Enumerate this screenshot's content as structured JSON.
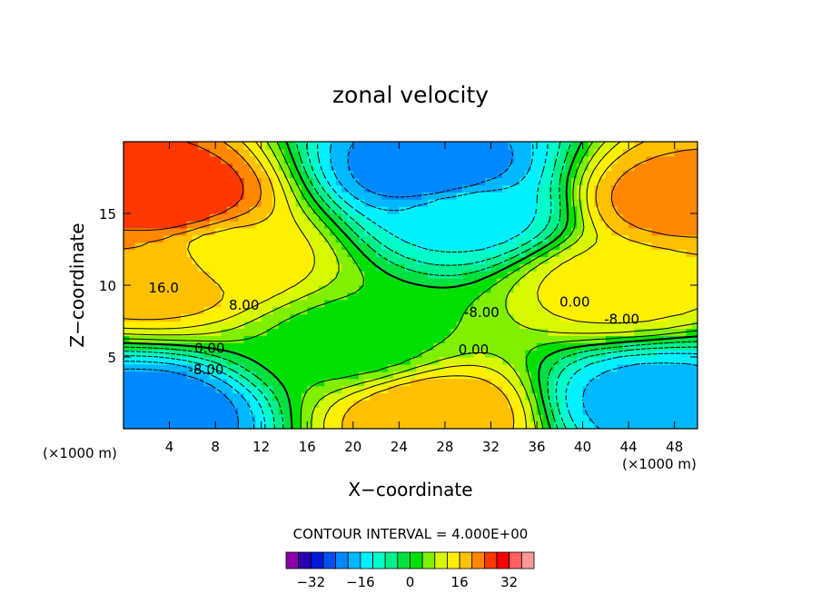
{
  "chart_data": {
    "type": "heatmap",
    "title": "zonal velocity",
    "xlabel": "X−coordinate",
    "ylabel": "Z−coordinate",
    "x_unit_left": "(×1000 m)",
    "x_unit_right": "(×1000 m)",
    "xlim": [
      0,
      50
    ],
    "ylim": [
      0,
      20
    ],
    "x_ticks": [
      4,
      8,
      12,
      16,
      20,
      24,
      28,
      32,
      36,
      40,
      44,
      48
    ],
    "y_ticks": [
      5,
      10,
      15
    ],
    "contour_interval_text": "CONTOUR INTERVAL = 4.000E+00",
    "contour_interval": 4,
    "contour_labels": [
      {
        "text": "16.0",
        "x": 3.5,
        "y": 9.5
      },
      {
        "text": "8.00",
        "x": 10.5,
        "y": 8.3
      },
      {
        "text": "0.00",
        "x": 7.5,
        "y": 5.3
      },
      {
        "text": "-8.00",
        "x": 7.2,
        "y": 3.8
      },
      {
        "text": "-8.00",
        "x": 31.2,
        "y": 7.8
      },
      {
        "text": "0.00",
        "x": 30.5,
        "y": 5.2
      },
      {
        "text": "0.00",
        "x": 39.3,
        "y": 8.5
      },
      {
        "text": "-8.00",
        "x": 43.4,
        "y": 7.3
      }
    ],
    "field": {
      "description": "zonal velocity over x (×1000 m) and z",
      "regions": [
        {
          "x": 3.5,
          "y": 16,
          "value": 28
        },
        {
          "x": 3,
          "y": 11,
          "value": 20
        },
        {
          "x": 9,
          "y": 12,
          "value": 14
        },
        {
          "x": 20,
          "y": 6,
          "value": 2
        },
        {
          "x": 30,
          "y": 15,
          "value": -14
        },
        {
          "x": 27,
          "y": 18,
          "value": -24
        },
        {
          "x": 48,
          "y": 16,
          "value": 22
        },
        {
          "x": 43,
          "y": 10,
          "value": 14
        },
        {
          "x": 27,
          "y": 1,
          "value": 20
        },
        {
          "x": 2,
          "y": 1,
          "value": -24
        },
        {
          "x": 46,
          "y": 2,
          "value": -18
        }
      ]
    },
    "colorbar": {
      "tick_labels": [
        "−32",
        "−16",
        "0",
        "16",
        "32"
      ],
      "tick_values": [
        -32,
        -16,
        0,
        16,
        32
      ],
      "levels": [
        -36,
        -32,
        -28,
        -24,
        -20,
        -16,
        -12,
        -8,
        -4,
        0,
        4,
        8,
        12,
        16,
        20,
        24,
        28,
        32,
        36
      ],
      "colors": [
        "#8a00a8",
        "#2a00b0",
        "#0018d8",
        "#0050f0",
        "#0088ff",
        "#00b8ff",
        "#00f0ff",
        "#00ffc8",
        "#00f090",
        "#00e040",
        "#00e000",
        "#80f000",
        "#d8f800",
        "#fff000",
        "#ffc000",
        "#ff8800",
        "#ff3800",
        "#ff0000",
        "#ff6060",
        "#ff9898"
      ]
    }
  }
}
